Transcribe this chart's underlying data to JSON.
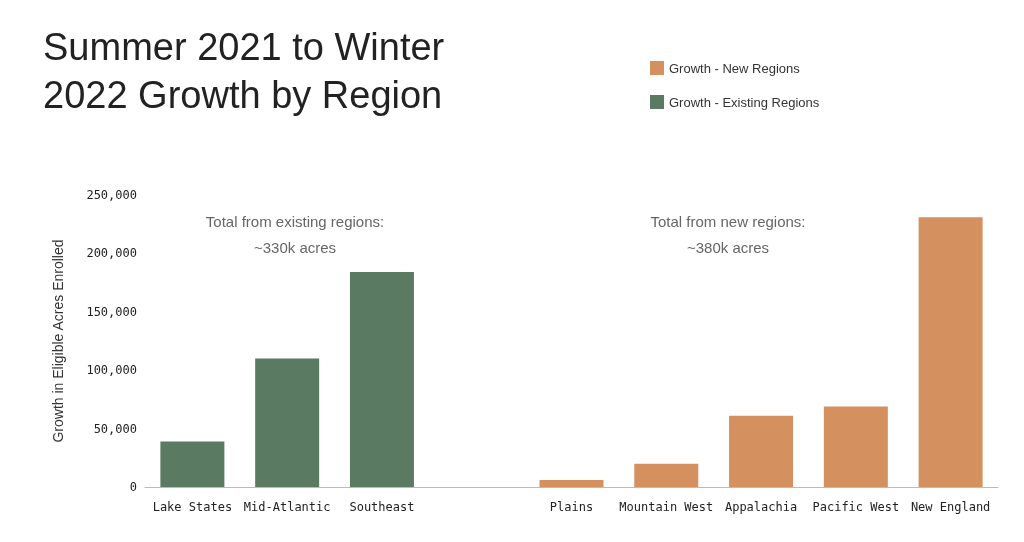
{
  "chart_data": {
    "type": "bar",
    "title": "Summer 2021 to Winter 2022 Growth by Region",
    "ylabel": "Growth in Eligible Acres Enrolled",
    "categories": [
      "Lake States",
      "Mid-Atlantic",
      "Southeast",
      null,
      "Plains",
      "Mountain West",
      "Appalachia",
      "Pacific West",
      "New England"
    ],
    "series": [
      {
        "name": "Growth - New Regions",
        "color": "#d4915f",
        "values": [
          null,
          null,
          null,
          null,
          6000,
          20000,
          61000,
          69000,
          231000
        ]
      },
      {
        "name": "Growth - Existing Regions",
        "color": "#5b7a62",
        "values": [
          39000,
          110000,
          184000,
          null,
          null,
          null,
          null,
          null,
          null
        ]
      }
    ],
    "stacked": true,
    "ylim": [
      0,
      250000
    ],
    "yticks": [
      0,
      {
        "value": 50000,
        "label": "50,000"
      },
      {
        "value": 100000,
        "label": "100,000"
      },
      {
        "value": 150000,
        "label": "150,000"
      },
      {
        "value": 200000,
        "label": "200,000"
      },
      {
        "value": 250000,
        "label": "250,000"
      }
    ],
    "grid": false,
    "legend": "top right",
    "annotations": [
      "Total from existing regions:\n~330k acres",
      "Total from new regions:\n~380k acres"
    ]
  }
}
